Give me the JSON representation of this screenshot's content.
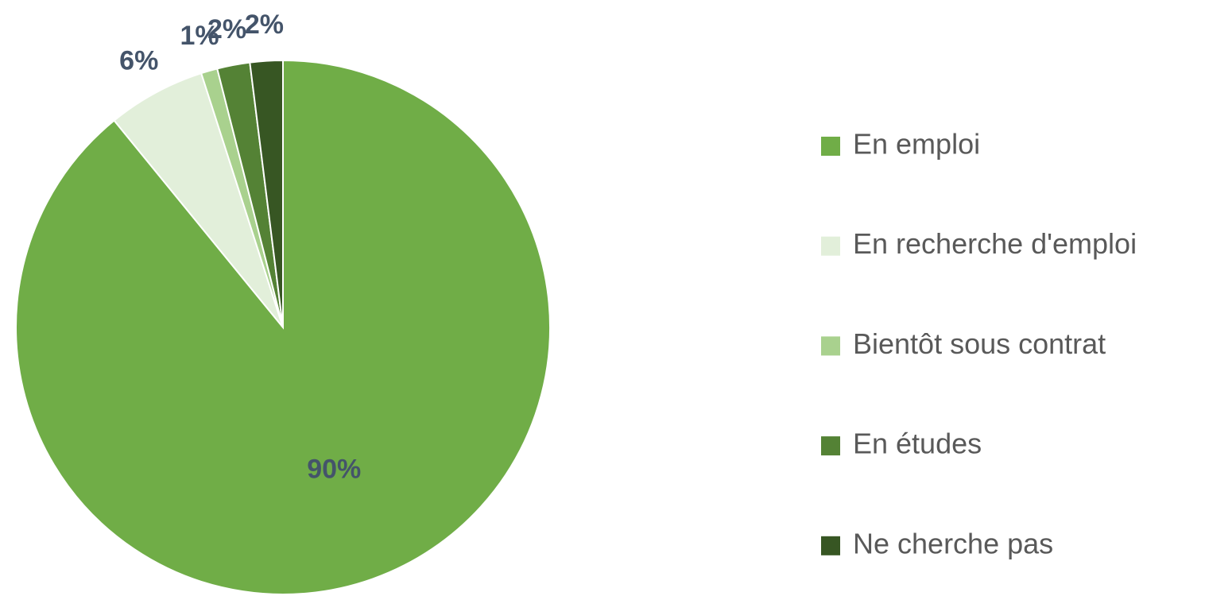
{
  "chart_data": {
    "type": "pie",
    "categories": [
      "En emploi",
      "En recherche d'emploi",
      "Bientôt sous contrat",
      "En études",
      "Ne cherche pas"
    ],
    "values": [
      90,
      6,
      1,
      2,
      2
    ],
    "value_labels": [
      "90%",
      "6%",
      "1%",
      "2%",
      "2%"
    ],
    "colors": [
      "#70ad47",
      "#e2efda",
      "#a9d18e",
      "#548235",
      "#375623"
    ],
    "legend": "right"
  }
}
